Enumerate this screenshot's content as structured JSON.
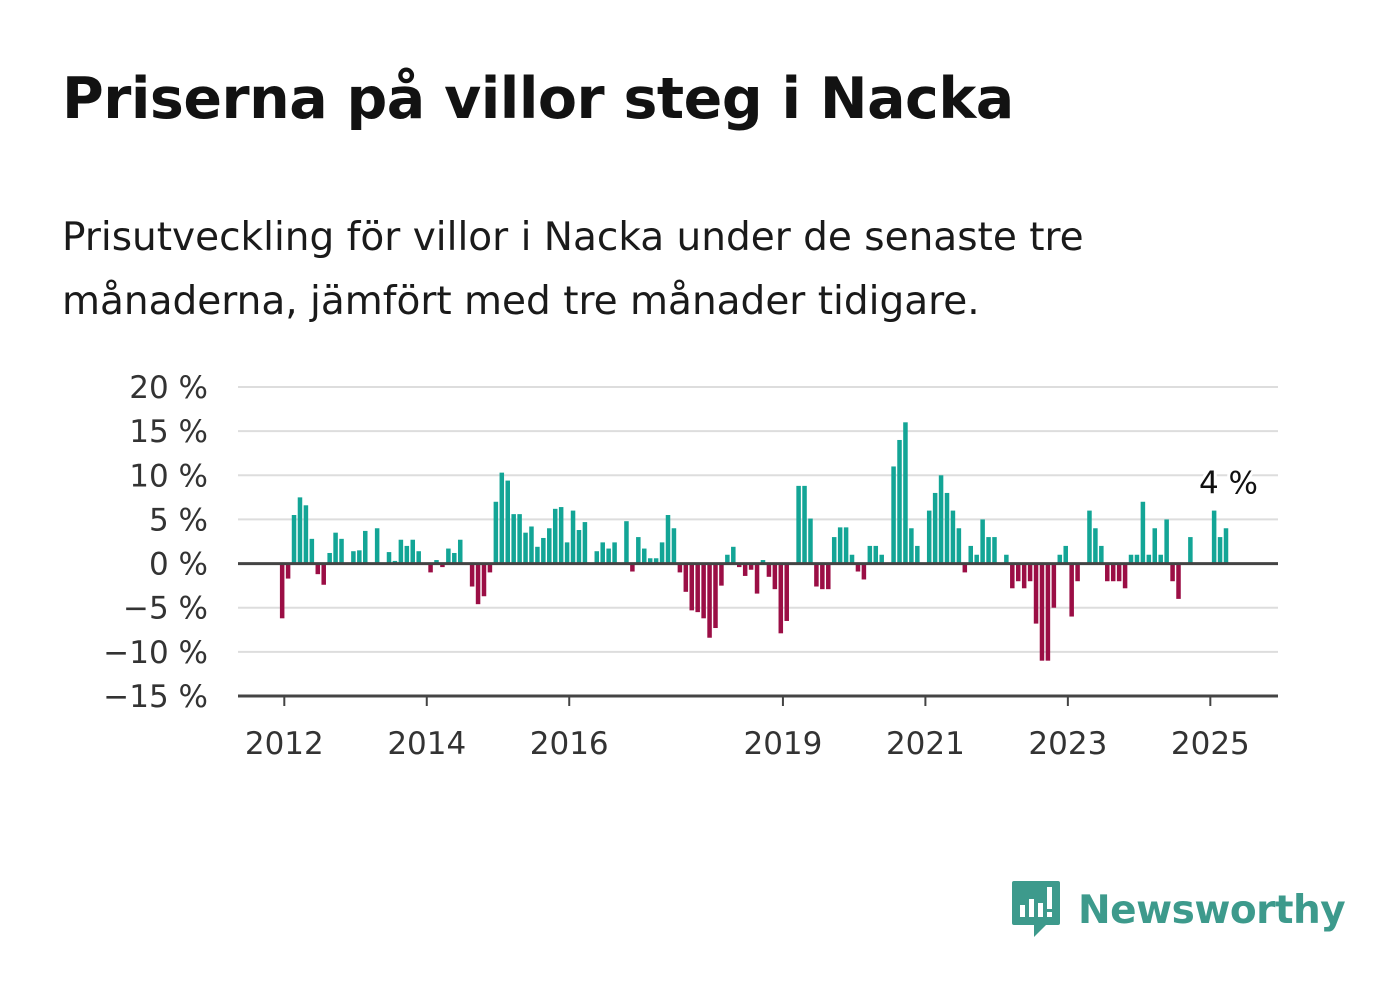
{
  "header": {
    "title": "Priserna på villor steg i Nacka",
    "subtitle": "Prisutveckling för villor i Nacka under de senaste tre månaderna, jämfört med tre månader tidigare."
  },
  "brand": {
    "name": "Newsworthy",
    "icon": "newsworthy-logo-icon",
    "color": "#3d9a8c"
  },
  "chart_data": {
    "type": "bar",
    "title": "",
    "xlabel": "",
    "ylabel": "",
    "ylim": [
      -15,
      20
    ],
    "xlim": [
      2011.35,
      2025.95
    ],
    "y_ticks": [
      {
        "value": 20,
        "label": "20 %"
      },
      {
        "value": 15,
        "label": "15 %"
      },
      {
        "value": 10,
        "label": "10 %"
      },
      {
        "value": 5,
        "label": "5 %"
      },
      {
        "value": 0,
        "label": "0 %"
      },
      {
        "value": -5,
        "label": "−5 %"
      },
      {
        "value": -10,
        "label": "−10 %"
      },
      {
        "value": -15,
        "label": "−15 %"
      }
    ],
    "x_ticks": [
      {
        "value": 2012,
        "label": "2012"
      },
      {
        "value": 2014,
        "label": "2014"
      },
      {
        "value": 2016,
        "label": "2016"
      },
      {
        "value": 2019,
        "label": "2019"
      },
      {
        "value": 2021,
        "label": "2021"
      },
      {
        "value": 2023,
        "label": "2023"
      },
      {
        "value": 2025,
        "label": "2025"
      }
    ],
    "grid": true,
    "legend": false,
    "colors": {
      "positive": "#13a596",
      "negative": "#9b0e45",
      "grid": "#dddddd",
      "axis": "#444444"
    },
    "annotation": {
      "text": "4 %",
      "value": 4
    },
    "values": [
      -6.2,
      -1.7,
      5.5,
      7.5,
      6.6,
      2.8,
      -1.2,
      -2.4,
      1.2,
      3.5,
      2.8,
      0.0,
      1.4,
      1.5,
      3.7,
      0.0,
      4.0,
      0.0,
      1.3,
      0.3,
      2.7,
      2.0,
      2.7,
      1.4,
      0.0,
      -1.0,
      0.4,
      -0.4,
      1.7,
      1.2,
      2.7,
      0.0,
      -2.6,
      -4.6,
      -3.7,
      -1.0,
      7.0,
      10.3,
      9.4,
      5.6,
      5.6,
      3.5,
      4.2,
      1.9,
      2.9,
      4.0,
      6.2,
      6.4,
      2.4,
      6.0,
      3.8,
      4.7,
      0.0,
      1.4,
      2.4,
      1.7,
      2.4,
      0.0,
      4.8,
      -0.9,
      3.0,
      1.7,
      0.6,
      0.6,
      2.4,
      5.5,
      4.0,
      -1.0,
      -3.2,
      -5.3,
      -5.5,
      -6.2,
      -8.4,
      -7.3,
      -2.5,
      1.0,
      1.9,
      -0.4,
      -1.4,
      -0.7,
      -3.4,
      0.4,
      -1.5,
      -2.9,
      -7.9,
      -6.5,
      0.0,
      8.8,
      8.8,
      5.1,
      -2.6,
      -2.9,
      -2.9,
      3.0,
      4.1,
      4.1,
      1.0,
      -0.9,
      -1.8,
      2.0,
      2.0,
      1.0,
      0.0,
      11.0,
      14.0,
      16.0,
      4.0,
      2.0,
      0.0,
      6.0,
      8.0,
      10.0,
      8.0,
      6.0,
      4.0,
      -1.0,
      2.0,
      1.0,
      5.0,
      3.0,
      3.0,
      0.0,
      1.0,
      -2.8,
      -2.0,
      -2.8,
      -2.0,
      -6.8,
      -11.0,
      -11.0,
      -5.0,
      1.0,
      2.0,
      -6.0,
      -2.0,
      0.0,
      6.0,
      4.0,
      2.0,
      -2.0,
      -2.0,
      -2.0,
      -2.8,
      1.0,
      1.0,
      7.0,
      1.0,
      4.0,
      1.0,
      5.0,
      -2.0,
      -4.0,
      0.0,
      3.0,
      0.0,
      0.0,
      0.0,
      6.0,
      3.0,
      4.0
    ]
  }
}
